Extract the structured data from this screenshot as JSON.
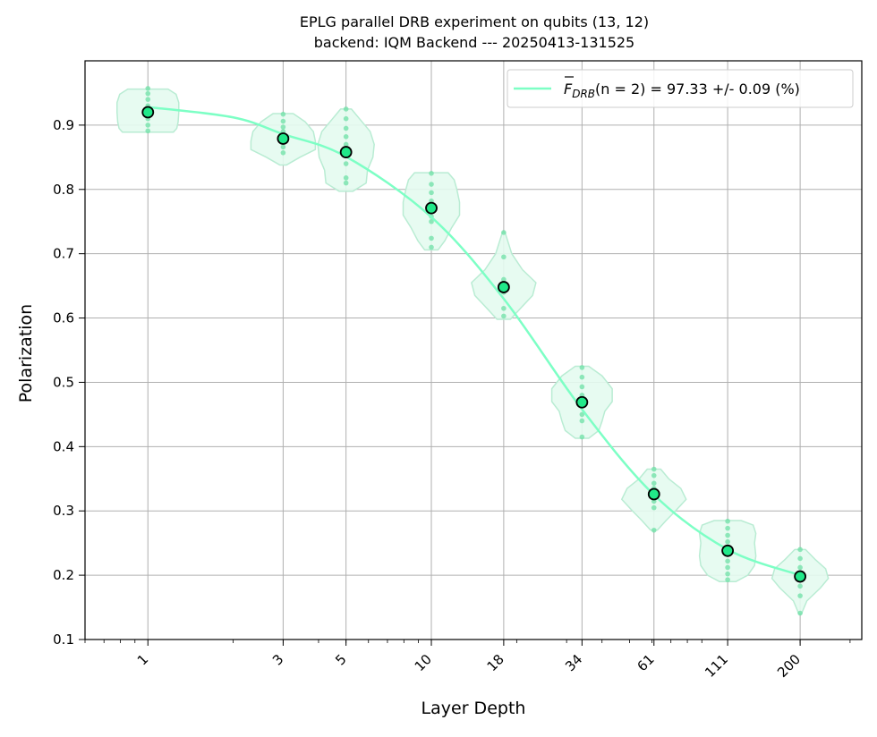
{
  "chart_data": {
    "type": "scatter",
    "title": "EPLG parallel DRB experiment on qubits (13, 12)",
    "subtitle": "backend: IQM Backend --- 20250413-131525",
    "xlabel": "Layer Depth",
    "ylabel": "Polarization",
    "x_scale": "log",
    "xlim": [
      0.6,
      330
    ],
    "ylim": [
      0.1,
      1.0
    ],
    "x_ticks": [
      1,
      3,
      5,
      10,
      18,
      34,
      61,
      111,
      200
    ],
    "x_tick_labels": [
      "1",
      "3",
      "5",
      "10",
      "18",
      "34",
      "61",
      "111",
      "200"
    ],
    "y_ticks": [
      0.1,
      0.2,
      0.3,
      0.4,
      0.5,
      0.6,
      0.7,
      0.8,
      0.9
    ],
    "y_tick_labels": [
      "0.1",
      "0.2",
      "0.3",
      "0.4",
      "0.5",
      "0.6",
      "0.7",
      "0.8",
      "0.9"
    ],
    "grid": true,
    "legend_position": "top-right",
    "legend": {
      "label_prefix": "F",
      "label_sub": "DRB",
      "label_suffix": "(n = 2) = 97.33 +/- 0.09 (%)"
    },
    "colors": {
      "fit": "#7dffc5",
      "violin_fill": "#e4fbf0",
      "violin_edge": "#b9ecd3",
      "sample_points": "#6ee0a6",
      "mean_marker": "#21e889",
      "mean_edge": "#000000",
      "grid": "#b0b0b0"
    },
    "means": [
      {
        "x": 1,
        "y": 0.92
      },
      {
        "x": 3,
        "y": 0.879
      },
      {
        "x": 5,
        "y": 0.858
      },
      {
        "x": 10,
        "y": 0.771
      },
      {
        "x": 18,
        "y": 0.648
      },
      {
        "x": 34,
        "y": 0.469
      },
      {
        "x": 61,
        "y": 0.326
      },
      {
        "x": 111,
        "y": 0.238
      },
      {
        "x": 200,
        "y": 0.198
      }
    ],
    "fit_curve": [
      [
        1,
        0.928
      ],
      [
        2,
        0.912
      ],
      [
        3,
        0.886
      ],
      [
        5,
        0.851
      ],
      [
        10,
        0.757
      ],
      [
        18,
        0.63
      ],
      [
        34,
        0.458
      ],
      [
        61,
        0.325
      ],
      [
        111,
        0.24
      ],
      [
        200,
        0.2
      ]
    ],
    "distributions": [
      {
        "x": 1,
        "samples": [
          0.891,
          0.9,
          0.91,
          0.92,
          0.93,
          0.94,
          0.949,
          0.957
        ]
      },
      {
        "x": 3,
        "samples": [
          0.857,
          0.866,
          0.874,
          0.882,
          0.89,
          0.897,
          0.906,
          0.917
        ]
      },
      {
        "x": 5,
        "samples": [
          0.81,
          0.818,
          0.84,
          0.855,
          0.87,
          0.882,
          0.895,
          0.91,
          0.925
        ]
      },
      {
        "x": 10,
        "samples": [
          0.71,
          0.724,
          0.75,
          0.758,
          0.768,
          0.782,
          0.795,
          0.808,
          0.825
        ]
      },
      {
        "x": 18,
        "samples": [
          0.603,
          0.615,
          0.64,
          0.65,
          0.66,
          0.695,
          0.733
        ]
      },
      {
        "x": 34,
        "samples": [
          0.415,
          0.44,
          0.45,
          0.468,
          0.48,
          0.493,
          0.508,
          0.523
        ]
      },
      {
        "x": 61,
        "samples": [
          0.27,
          0.305,
          0.315,
          0.325,
          0.335,
          0.343,
          0.355,
          0.365
        ]
      },
      {
        "x": 111,
        "samples": [
          0.193,
          0.202,
          0.212,
          0.222,
          0.233,
          0.252,
          0.262,
          0.273,
          0.284
        ]
      },
      {
        "x": 200,
        "samples": [
          0.141,
          0.168,
          0.183,
          0.193,
          0.2,
          0.212,
          0.226,
          0.24
        ]
      }
    ],
    "violin_shapes": [
      {
        "x": 1,
        "profile": [
          [
            0.889,
            0.38
          ],
          [
            0.895,
            0.43
          ],
          [
            0.905,
            0.45
          ],
          [
            0.92,
            0.46
          ],
          [
            0.935,
            0.46
          ],
          [
            0.948,
            0.42
          ],
          [
            0.956,
            0.3
          ]
        ]
      },
      {
        "x": 3,
        "profile": [
          [
            0.838,
            0.05
          ],
          [
            0.85,
            0.25
          ],
          [
            0.862,
            0.48
          ],
          [
            0.875,
            0.48
          ],
          [
            0.89,
            0.45
          ],
          [
            0.905,
            0.33
          ],
          [
            0.918,
            0.15
          ]
        ]
      },
      {
        "x": 5,
        "profile": [
          [
            0.797,
            0.1
          ],
          [
            0.81,
            0.3
          ],
          [
            0.83,
            0.32
          ],
          [
            0.85,
            0.4
          ],
          [
            0.87,
            0.42
          ],
          [
            0.89,
            0.36
          ],
          [
            0.91,
            0.2
          ],
          [
            0.925,
            0.08
          ]
        ]
      },
      {
        "x": 10,
        "profile": [
          [
            0.706,
            0.1
          ],
          [
            0.72,
            0.2
          ],
          [
            0.74,
            0.3
          ],
          [
            0.76,
            0.42
          ],
          [
            0.78,
            0.42
          ],
          [
            0.8,
            0.38
          ],
          [
            0.815,
            0.34
          ],
          [
            0.826,
            0.25
          ]
        ]
      },
      {
        "x": 18,
        "profile": [
          [
            0.598,
            0.1
          ],
          [
            0.615,
            0.25
          ],
          [
            0.635,
            0.43
          ],
          [
            0.655,
            0.48
          ],
          [
            0.675,
            0.28
          ],
          [
            0.7,
            0.12
          ],
          [
            0.733,
            0.02
          ]
        ]
      },
      {
        "x": 34,
        "profile": [
          [
            0.413,
            0.1
          ],
          [
            0.425,
            0.25
          ],
          [
            0.44,
            0.3
          ],
          [
            0.455,
            0.34
          ],
          [
            0.47,
            0.45
          ],
          [
            0.49,
            0.45
          ],
          [
            0.51,
            0.3
          ],
          [
            0.525,
            0.1
          ]
        ]
      },
      {
        "x": 61,
        "profile": [
          [
            0.27,
            0.05
          ],
          [
            0.285,
            0.18
          ],
          [
            0.3,
            0.32
          ],
          [
            0.318,
            0.48
          ],
          [
            0.335,
            0.4
          ],
          [
            0.35,
            0.22
          ],
          [
            0.365,
            0.1
          ]
        ]
      },
      {
        "x": 111,
        "profile": [
          [
            0.19,
            0.12
          ],
          [
            0.2,
            0.3
          ],
          [
            0.215,
            0.4
          ],
          [
            0.23,
            0.42
          ],
          [
            0.25,
            0.4
          ],
          [
            0.265,
            0.42
          ],
          [
            0.278,
            0.38
          ],
          [
            0.285,
            0.2
          ]
        ]
      },
      {
        "x": 200,
        "profile": [
          [
            0.14,
            0.02
          ],
          [
            0.16,
            0.1
          ],
          [
            0.18,
            0.3
          ],
          [
            0.195,
            0.42
          ],
          [
            0.21,
            0.38
          ],
          [
            0.225,
            0.22
          ],
          [
            0.24,
            0.08
          ]
        ]
      }
    ]
  }
}
